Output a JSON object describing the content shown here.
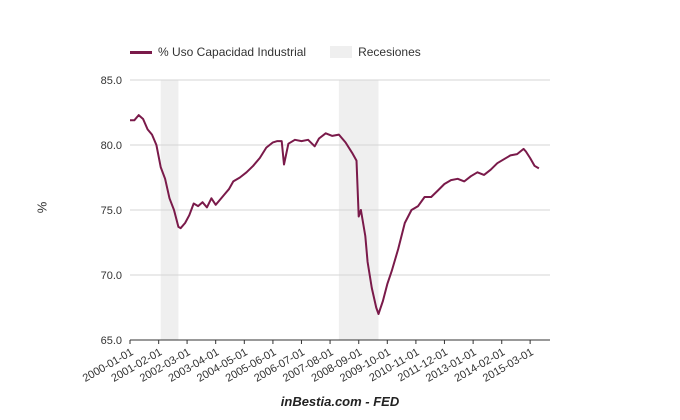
{
  "chart_data": {
    "type": "line",
    "title": "",
    "xlabel": "",
    "ylabel": "%",
    "source": "inBestia.com - FED",
    "ylim": [
      65.0,
      85.0
    ],
    "yticks": [
      "65.0",
      "70.0",
      "75.0",
      "80.0",
      "85.0"
    ],
    "xlim": [
      "2000-01-01",
      "2015-12-01"
    ],
    "xticks": [
      "2000-01-01",
      "2001-02-01",
      "2002-03-01",
      "2003-04-01",
      "2004-05-01",
      "2005-06-01",
      "2006-07-01",
      "2007-08-01",
      "2008-09-01",
      "2009-10-01",
      "2010-11-01",
      "2011-12-01",
      "2013-01-01",
      "2014-02-01",
      "2015-03-01"
    ],
    "grid": true,
    "legend_position": "top-left",
    "colors": {
      "series": "#7a1a4a",
      "recession": "#efefef"
    },
    "legend": {
      "series_label": "% Uso Capacidad Industrial",
      "recession_label": "Recesiones"
    },
    "recessions": [
      {
        "start": "2001-03-01",
        "end": "2001-11-01"
      },
      {
        "start": "2007-12-01",
        "end": "2009-06-01"
      }
    ],
    "series": [
      {
        "name": "% Uso Capacidad Industrial",
        "points": [
          [
            "2000-01-01",
            81.9
          ],
          [
            "2000-03-01",
            81.9
          ],
          [
            "2000-05-01",
            82.3
          ],
          [
            "2000-07-01",
            82.0
          ],
          [
            "2000-09-01",
            81.2
          ],
          [
            "2000-11-01",
            80.8
          ],
          [
            "2001-01-01",
            80.0
          ],
          [
            "2001-03-01",
            78.3
          ],
          [
            "2001-05-01",
            77.4
          ],
          [
            "2001-07-01",
            75.9
          ],
          [
            "2001-09-01",
            75.0
          ],
          [
            "2001-11-01",
            73.7
          ],
          [
            "2001-12-01",
            73.6
          ],
          [
            "2002-02-01",
            74.0
          ],
          [
            "2002-04-01",
            74.6
          ],
          [
            "2002-06-01",
            75.5
          ],
          [
            "2002-08-01",
            75.3
          ],
          [
            "2002-10-01",
            75.6
          ],
          [
            "2002-12-01",
            75.2
          ],
          [
            "2003-02-01",
            75.9
          ],
          [
            "2003-04-01",
            75.4
          ],
          [
            "2003-06-01",
            75.8
          ],
          [
            "2003-08-01",
            76.2
          ],
          [
            "2003-10-01",
            76.6
          ],
          [
            "2003-12-01",
            77.2
          ],
          [
            "2004-03-01",
            77.5
          ],
          [
            "2004-06-01",
            77.9
          ],
          [
            "2004-09-01",
            78.4
          ],
          [
            "2004-12-01",
            79.0
          ],
          [
            "2005-03-01",
            79.8
          ],
          [
            "2005-06-01",
            80.2
          ],
          [
            "2005-08-01",
            80.3
          ],
          [
            "2005-10-01",
            80.3
          ],
          [
            "2005-11-01",
            78.5
          ],
          [
            "2006-01-01",
            80.1
          ],
          [
            "2006-04-01",
            80.4
          ],
          [
            "2006-07-01",
            80.3
          ],
          [
            "2006-10-01",
            80.4
          ],
          [
            "2007-01-01",
            79.9
          ],
          [
            "2007-03-01",
            80.5
          ],
          [
            "2007-06-01",
            80.9
          ],
          [
            "2007-09-01",
            80.7
          ],
          [
            "2007-12-01",
            80.8
          ],
          [
            "2008-03-01",
            80.2
          ],
          [
            "2008-06-01",
            79.4
          ],
          [
            "2008-08-01",
            78.8
          ],
          [
            "2008-09-01",
            74.5
          ],
          [
            "2008-10-01",
            75.0
          ],
          [
            "2008-12-01",
            73.0
          ],
          [
            "2009-01-01",
            71.0
          ],
          [
            "2009-03-01",
            69.0
          ],
          [
            "2009-05-01",
            67.5
          ],
          [
            "2009-06-01",
            67.0
          ],
          [
            "2009-08-01",
            68.0
          ],
          [
            "2009-10-01",
            69.3
          ],
          [
            "2009-12-01",
            70.3
          ],
          [
            "2010-03-01",
            72.0
          ],
          [
            "2010-06-01",
            74.0
          ],
          [
            "2010-09-01",
            75.0
          ],
          [
            "2010-12-01",
            75.3
          ],
          [
            "2011-03-01",
            76.0
          ],
          [
            "2011-06-01",
            76.0
          ],
          [
            "2011-09-01",
            76.5
          ],
          [
            "2011-12-01",
            77.0
          ],
          [
            "2012-03-01",
            77.3
          ],
          [
            "2012-06-01",
            77.4
          ],
          [
            "2012-09-01",
            77.2
          ],
          [
            "2012-12-01",
            77.6
          ],
          [
            "2013-03-01",
            77.9
          ],
          [
            "2013-06-01",
            77.7
          ],
          [
            "2013-09-01",
            78.1
          ],
          [
            "2013-12-01",
            78.6
          ],
          [
            "2014-03-01",
            78.9
          ],
          [
            "2014-06-01",
            79.2
          ],
          [
            "2014-09-01",
            79.3
          ],
          [
            "2014-12-01",
            79.7
          ],
          [
            "2015-01-01",
            79.5
          ],
          [
            "2015-03-01",
            79.0
          ],
          [
            "2015-05-01",
            78.4
          ],
          [
            "2015-07-01",
            78.2
          ]
        ]
      }
    ]
  }
}
